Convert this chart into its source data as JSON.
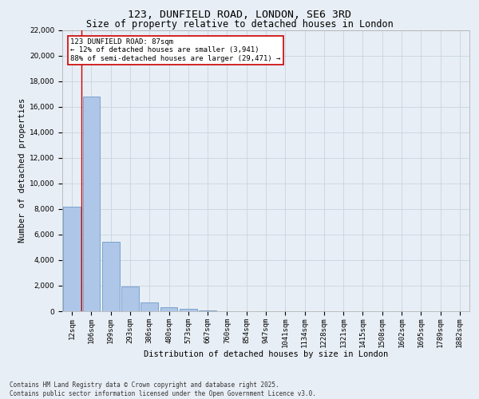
{
  "title_line1": "123, DUNFIELD ROAD, LONDON, SE6 3RD",
  "title_line2": "Size of property relative to detached houses in London",
  "xlabel": "Distribution of detached houses by size in London",
  "ylabel": "Number of detached properties",
  "categories": [
    "12sqm",
    "106sqm",
    "199sqm",
    "293sqm",
    "386sqm",
    "480sqm",
    "573sqm",
    "667sqm",
    "760sqm",
    "854sqm",
    "947sqm",
    "1041sqm",
    "1134sqm",
    "1228sqm",
    "1321sqm",
    "1415sqm",
    "1508sqm",
    "1602sqm",
    "1695sqm",
    "1789sqm",
    "1882sqm"
  ],
  "values": [
    8200,
    16800,
    5450,
    1950,
    700,
    320,
    170,
    50,
    0,
    0,
    0,
    0,
    0,
    0,
    0,
    0,
    0,
    0,
    0,
    0,
    0
  ],
  "ylim": [
    0,
    22000
  ],
  "yticks": [
    0,
    2000,
    4000,
    6000,
    8000,
    10000,
    12000,
    14000,
    16000,
    18000,
    20000,
    22000
  ],
  "bar_color": "#aec6e8",
  "bar_edge_color": "#5a8fc0",
  "vline_color": "#cc0000",
  "annotation_text": "123 DUNFIELD ROAD: 87sqm\n← 12% of detached houses are smaller (3,941)\n88% of semi-detached houses are larger (29,471) →",
  "annotation_box_color": "#ffffff",
  "annotation_box_edge": "#cc0000",
  "grid_color": "#c8d4e0",
  "bg_color": "#e8eef5",
  "footer_line1": "Contains HM Land Registry data © Crown copyright and database right 2025.",
  "footer_line2": "Contains public sector information licensed under the Open Government Licence v3.0.",
  "title_fontsize": 9.5,
  "subtitle_fontsize": 8.5,
  "axis_label_fontsize": 7.5,
  "tick_fontsize": 6.5,
  "annotation_fontsize": 6.5,
  "footer_fontsize": 5.5
}
